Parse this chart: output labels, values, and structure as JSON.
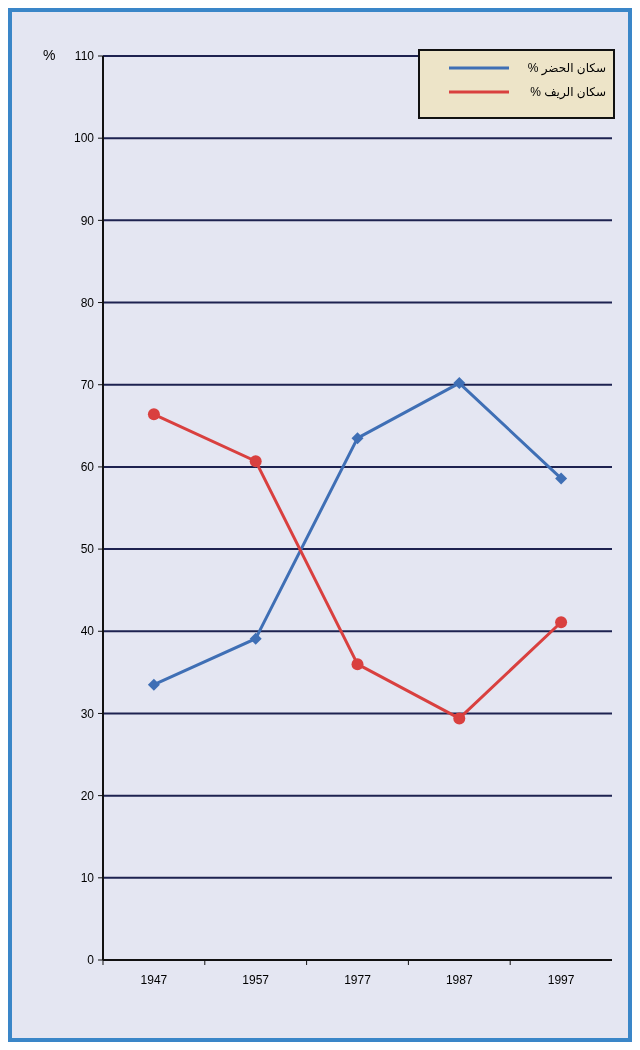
{
  "chart_data": {
    "type": "line",
    "ylabel": "%",
    "categories": [
      "1947",
      "1957",
      "1977",
      "1987",
      "1997"
    ],
    "series": [
      {
        "name": "سكان الحضر %",
        "color": "#3f6fb5",
        "marker": "diamond",
        "values": [
          33.5,
          39.1,
          63.5,
          70.2,
          58.6
        ]
      },
      {
        "name": "سكان الريف %",
        "color": "#d9403f",
        "marker": "circle",
        "values": [
          66.4,
          60.7,
          36.0,
          29.4,
          41.1
        ]
      }
    ],
    "ylim": [
      0,
      110
    ],
    "yticks": [
      0,
      10,
      20,
      30,
      40,
      50,
      60,
      70,
      80,
      90,
      100,
      110
    ],
    "grid": "y",
    "legend": "top right"
  }
}
